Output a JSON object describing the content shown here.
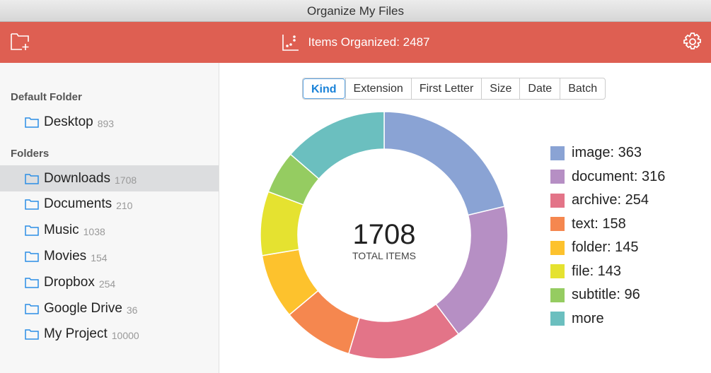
{
  "window": {
    "title": "Organize My Files"
  },
  "header": {
    "items_organized": "Items Organized: 2487",
    "color": "#de5f52"
  },
  "sidebar": {
    "default_heading": "Default Folder",
    "default_item": {
      "name": "Desktop",
      "count": "893"
    },
    "folders_heading": "Folders",
    "folders": [
      {
        "name": "Downloads",
        "count": "1708",
        "selected": true
      },
      {
        "name": "Documents",
        "count": "210"
      },
      {
        "name": "Music",
        "count": "1038"
      },
      {
        "name": "Movies",
        "count": "154"
      },
      {
        "name": "Dropbox",
        "count": "254"
      },
      {
        "name": "Google Drive",
        "count": "36"
      },
      {
        "name": "My Project",
        "count": "10000"
      }
    ]
  },
  "tabs": [
    {
      "label": "Kind",
      "active": true
    },
    {
      "label": "Extension"
    },
    {
      "label": "First Letter"
    },
    {
      "label": "Size"
    },
    {
      "label": "Date"
    },
    {
      "label": "Batch"
    }
  ],
  "chart_data": {
    "type": "pie",
    "donut": true,
    "center_value": "1708",
    "center_label": "TOTAL ITEMS",
    "legend_position": "right",
    "slices": [
      {
        "label": "image: 363",
        "name": "image",
        "value": 363,
        "color": "#8aa3d4"
      },
      {
        "label": "document: 316",
        "name": "document",
        "value": 316,
        "color": "#b68fc4"
      },
      {
        "label": "archive: 254",
        "name": "archive",
        "value": 254,
        "color": "#e37488"
      },
      {
        "label": "text: 158",
        "name": "text",
        "value": 158,
        "color": "#f5874f"
      },
      {
        "label": "folder: 145",
        "name": "folder",
        "value": 145,
        "color": "#fdc22d"
      },
      {
        "label": "file: 143",
        "name": "file",
        "value": 143,
        "color": "#e5e230"
      },
      {
        "label": "subtitle: 96",
        "name": "subtitle",
        "value": 96,
        "color": "#95cc61"
      },
      {
        "label": "more",
        "name": "more",
        "value": 233,
        "color": "#6bbfbf"
      }
    ]
  }
}
